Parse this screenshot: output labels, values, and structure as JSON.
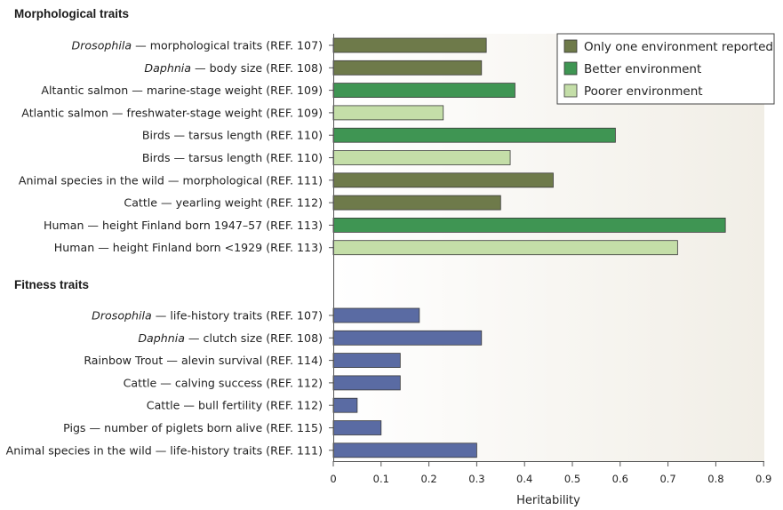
{
  "chart_data": {
    "type": "bar",
    "orientation": "horizontal",
    "xlabel": "Heritability",
    "xlim": [
      0,
      0.9
    ],
    "xticks": [
      "0",
      "0.1",
      "0.2",
      "0.3",
      "0.4",
      "0.5",
      "0.6",
      "0.7",
      "0.8",
      "0.9"
    ],
    "grid": false,
    "legend_position": "top-right",
    "legend": [
      {
        "key": "one",
        "label": "Only one environment reported",
        "color": "#6e7a4a"
      },
      {
        "key": "better",
        "label": "Better environment",
        "color": "#3f9553"
      },
      {
        "key": "poorer",
        "label": "Poorer environment",
        "color": "#c4dea8"
      }
    ],
    "fitness_color": "#5a6ba3",
    "groups": [
      {
        "title": "Morphological traits",
        "items": [
          {
            "taxon_italic": "Drosophila",
            "label": " — morphological traits (REF. 107)",
            "value": 0.32,
            "env": "one"
          },
          {
            "taxon_italic": "Daphnia",
            "label": " — body size (REF. 108)",
            "value": 0.31,
            "env": "one"
          },
          {
            "taxon_italic": "",
            "label": "Altantic salmon — marine-stage weight (REF. 109)",
            "value": 0.38,
            "env": "better"
          },
          {
            "taxon_italic": "",
            "label": "Atlantic salmon — freshwater-stage weight (REF. 109)",
            "value": 0.23,
            "env": "poorer"
          },
          {
            "taxon_italic": "",
            "label": "Birds — tarsus length (REF. 110)",
            "value": 0.59,
            "env": "better"
          },
          {
            "taxon_italic": "",
            "label": "Birds — tarsus length (REF. 110)",
            "value": 0.37,
            "env": "poorer"
          },
          {
            "taxon_italic": "",
            "label": "Animal species in the wild — morphological (REF. 111)",
            "value": 0.46,
            "env": "one"
          },
          {
            "taxon_italic": "",
            "label": "Cattle — yearling weight (REF. 112)",
            "value": 0.35,
            "env": "one"
          },
          {
            "taxon_italic": "",
            "label": "Human — height Finland born 1947–57 (REF. 113)",
            "value": 0.82,
            "env": "better"
          },
          {
            "taxon_italic": "",
            "label": "Human — height Finland born <1929 (REF. 113)",
            "value": 0.72,
            "env": "poorer"
          }
        ]
      },
      {
        "title": "Fitness traits",
        "items": [
          {
            "taxon_italic": "Drosophila",
            "label": " — life-history traits (REF. 107)",
            "value": 0.18,
            "env": "fitness"
          },
          {
            "taxon_italic": "Daphnia",
            "label": " — clutch size (REF. 108)",
            "value": 0.31,
            "env": "fitness"
          },
          {
            "taxon_italic": "",
            "label": "Rainbow Trout — alevin survival (REF. 114)",
            "value": 0.14,
            "env": "fitness"
          },
          {
            "taxon_italic": "",
            "label": "Cattle — calving success (REF. 112)",
            "value": 0.14,
            "env": "fitness"
          },
          {
            "taxon_italic": "",
            "label": "Cattle — bull fertility (REF. 112)",
            "value": 0.05,
            "env": "fitness"
          },
          {
            "taxon_italic": "",
            "label": "Pigs — number of piglets born alive (REF. 115)",
            "value": 0.1,
            "env": "fitness"
          },
          {
            "taxon_italic": "",
            "label": "Animal species in the wild — life-history traits (REF. 111)",
            "value": 0.3,
            "env": "fitness"
          }
        ]
      }
    ]
  }
}
